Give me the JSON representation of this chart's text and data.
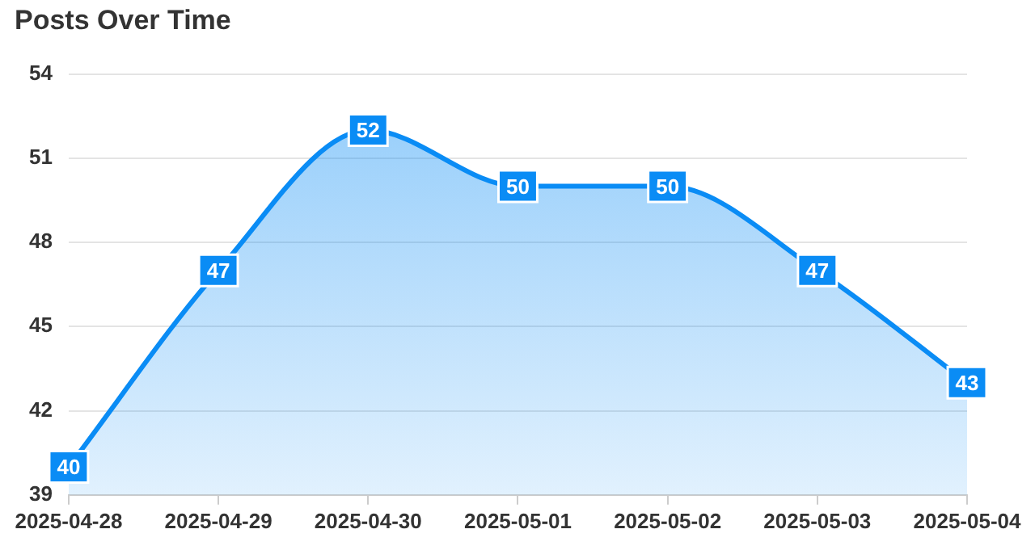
{
  "chart_data": {
    "type": "area",
    "title": "Posts Over Time",
    "categories": [
      "2025-04-28",
      "2025-04-29",
      "2025-04-30",
      "2025-05-01",
      "2025-05-02",
      "2025-05-03",
      "2025-05-04"
    ],
    "series": [
      {
        "color": "#0a8cf5",
        "values": [
          40,
          47,
          52,
          50,
          50,
          47,
          43
        ]
      }
    ],
    "ylim": [
      39,
      54
    ],
    "yticks": [
      39,
      42,
      45,
      48,
      51,
      54
    ],
    "grid": "y",
    "data_labels": true,
    "line_style": "solid",
    "legend": false
  }
}
